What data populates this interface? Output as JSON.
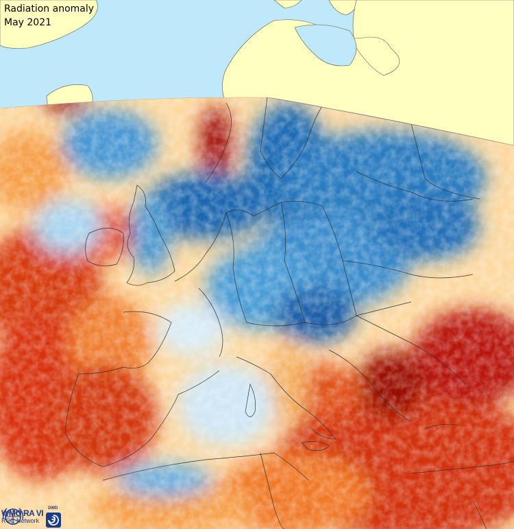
{
  "map": {
    "title": "Radiation anomaly",
    "subtitle": "May 2021",
    "colors": {
      "sea": "#bfe9fb",
      "land_outside": "#ffffc0",
      "strong_negative": "#08519c",
      "negative": "#4a9fd8",
      "slight_negative": "#cde8f8",
      "neutral": "#f5f5f0",
      "slight_positive": "#fdc879",
      "positive": "#f07020",
      "strong_positive": "#c01808",
      "extreme_positive": "#7a0000"
    }
  },
  "logo": {
    "org_line1": "WMO RA VI",
    "org_line2": "RCC Network",
    "partner": "DWD",
    "icons": [
      "wmo-emblem-icon",
      "dwd-swirl-icon"
    ]
  }
}
